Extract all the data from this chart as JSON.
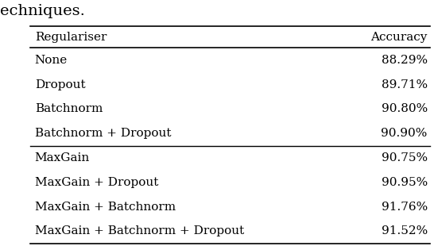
{
  "caption_text": "echniques.",
  "col_headers": [
    "Regulariser",
    "Accuracy"
  ],
  "rows": [
    [
      "None",
      "88.29%"
    ],
    [
      "Dropout",
      "89.71%"
    ],
    [
      "Batchnorm",
      "90.80%"
    ],
    [
      "Batchnorm + Dropout",
      "90.90%"
    ],
    [
      "MaxGain",
      "90.75%"
    ],
    [
      "MaxGain + Dropout",
      "90.95%"
    ],
    [
      "MaxGain + Batchnorm",
      "91.76%"
    ],
    [
      "MaxGain + Batchnorm + Dropout",
      "91.52%"
    ]
  ],
  "mid_rule_after_row": 3,
  "bg_color": "#ffffff",
  "text_color": "#000000",
  "font_size": 11.0,
  "caption_font_size": 14.0,
  "figsize": [
    5.46,
    3.1
  ],
  "dpi": 100
}
